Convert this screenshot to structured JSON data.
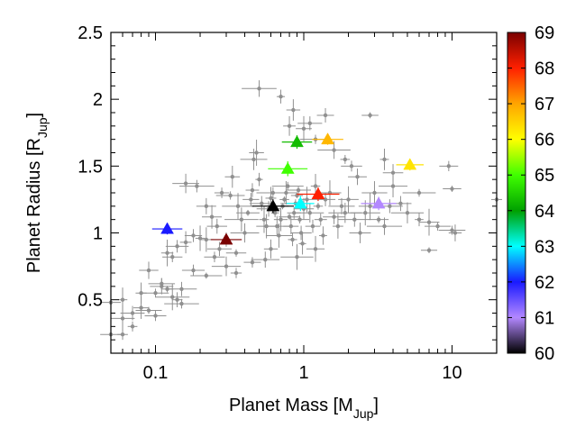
{
  "chart_data": {
    "type": "scatter",
    "title": "",
    "xlabel": {
      "main": "Planet Mass [M",
      "sub": "Jup",
      "close": "]"
    },
    "ylabel": {
      "main": "Planet Radius [R",
      "sub": "Jup",
      "close": "]"
    },
    "x_scale": "log",
    "xlim": [
      0.05,
      20
    ],
    "ylim": [
      0.1,
      2.5
    ],
    "x_ticks": [
      {
        "value": 0.1,
        "label": "0.1"
      },
      {
        "value": 1,
        "label": "1"
      },
      {
        "value": 10,
        "label": "10"
      }
    ],
    "y_ticks": [
      {
        "value": 0.5,
        "label": "0.5"
      },
      {
        "value": 1,
        "label": "1"
      },
      {
        "value": 1.5,
        "label": "1.5"
      },
      {
        "value": 2,
        "label": "2"
      },
      {
        "value": 2.5,
        "label": "2.5"
      }
    ],
    "grid": false,
    "colorbar": {
      "range": [
        60,
        69
      ],
      "ticks": [
        "60",
        "61",
        "62",
        "63",
        "64",
        "65",
        "66",
        "67",
        "68",
        "69"
      ],
      "stops": [
        {
          "value": 60,
          "color": "#000000"
        },
        {
          "value": 61,
          "color": "#b388ff"
        },
        {
          "value": 62,
          "color": "#1a1aff"
        },
        {
          "value": 63,
          "color": "#00ffff"
        },
        {
          "value": 64,
          "color": "#00a000"
        },
        {
          "value": 65,
          "color": "#40ff00"
        },
        {
          "value": 66,
          "color": "#ffff00"
        },
        {
          "value": 67,
          "color": "#ffa500"
        },
        {
          "value": 68,
          "color": "#ff2000"
        },
        {
          "value": 69,
          "color": "#7a0000"
        }
      ]
    },
    "series": [
      {
        "kind": "background",
        "color": "#909090",
        "points": [
          [
            0.05,
            0.24
          ],
          [
            0.06,
            0.24
          ],
          [
            0.05,
            0.48
          ],
          [
            0.06,
            0.5
          ],
          [
            0.07,
            0.4
          ],
          [
            0.08,
            0.44
          ],
          [
            0.09,
            0.42
          ],
          [
            0.1,
            0.38
          ],
          [
            0.1,
            0.55
          ],
          [
            0.11,
            0.6
          ],
          [
            0.12,
            0.58
          ],
          [
            0.13,
            0.52
          ],
          [
            0.14,
            0.5
          ],
          [
            0.15,
            0.47
          ],
          [
            0.09,
            0.72
          ],
          [
            0.11,
            0.62
          ],
          [
            0.12,
            0.85
          ],
          [
            0.13,
            0.82
          ],
          [
            0.14,
            0.9
          ],
          [
            0.16,
            0.93
          ],
          [
            0.18,
            0.98
          ],
          [
            0.2,
            0.96
          ],
          [
            0.22,
            0.95
          ],
          [
            0.25,
            0.82
          ],
          [
            0.27,
            0.88
          ],
          [
            0.3,
            0.75
          ],
          [
            0.35,
            0.7
          ],
          [
            0.35,
            0.85
          ],
          [
            0.3,
            0.95
          ],
          [
            0.16,
            1.37
          ],
          [
            0.19,
            1.35
          ],
          [
            0.22,
            1.2
          ],
          [
            0.24,
            1.12
          ],
          [
            0.26,
            1.05
          ],
          [
            0.28,
            1.3
          ],
          [
            0.32,
            1.28
          ],
          [
            0.33,
            1.42
          ],
          [
            0.36,
            1.2
          ],
          [
            0.38,
            1.1
          ],
          [
            0.4,
            1.0
          ],
          [
            0.42,
            1.15
          ],
          [
            0.44,
            1.25
          ],
          [
            0.45,
            1.32
          ],
          [
            0.46,
            1.55
          ],
          [
            0.48,
            1.6
          ],
          [
            0.5,
            1.4
          ],
          [
            0.52,
            1.22
          ],
          [
            0.54,
            1.1
          ],
          [
            0.56,
            1.05
          ],
          [
            0.58,
            1.18
          ],
          [
            0.6,
            1.26
          ],
          [
            0.62,
            1.3
          ],
          [
            0.64,
            1.15
          ],
          [
            0.66,
            1.05
          ],
          [
            0.68,
            0.98
          ],
          [
            0.7,
            1.1
          ],
          [
            0.72,
            1.2
          ],
          [
            0.74,
            1.25
          ],
          [
            0.76,
            1.3
          ],
          [
            0.78,
            1.35
          ],
          [
            0.8,
            1.12
          ],
          [
            0.82,
            1.05
          ],
          [
            0.84,
            0.95
          ],
          [
            0.86,
            1.15
          ],
          [
            0.88,
            1.22
          ],
          [
            0.9,
            1.28
          ],
          [
            0.92,
            1.32
          ],
          [
            0.94,
            1.1
          ],
          [
            0.96,
            1.0
          ],
          [
            0.98,
            0.92
          ],
          [
            1.0,
            1.18
          ],
          [
            1.05,
            1.25
          ],
          [
            1.1,
            1.15
          ],
          [
            1.15,
            1.05
          ],
          [
            1.2,
            1.35
          ],
          [
            1.25,
            1.2
          ],
          [
            1.3,
            1.1
          ],
          [
            1.35,
            0.98
          ],
          [
            1.4,
            1.25
          ],
          [
            1.5,
            1.3
          ],
          [
            1.6,
            1.12
          ],
          [
            1.7,
            1.05
          ],
          [
            1.8,
            1.2
          ],
          [
            1.9,
            1.15
          ],
          [
            2.0,
            1.25
          ],
          [
            2.2,
            1.1
          ],
          [
            2.4,
            1.0
          ],
          [
            2.6,
            1.15
          ],
          [
            2.8,
            1.2
          ],
          [
            3.0,
            1.3
          ],
          [
            3.2,
            1.1
          ],
          [
            3.5,
            1.05
          ],
          [
            3.8,
            1.2
          ],
          [
            4.0,
            1.35
          ],
          [
            4.5,
            1.22
          ],
          [
            5.0,
            1.15
          ],
          [
            6.0,
            1.1
          ],
          [
            7.0,
            1.08
          ],
          [
            8.0,
            1.05
          ],
          [
            10.0,
            1.02
          ],
          [
            10.5,
            1.0
          ],
          [
            7.0,
            0.87
          ],
          [
            0.5,
            2.08
          ],
          [
            0.7,
            2.02
          ],
          [
            0.8,
            1.8
          ],
          [
            0.85,
            1.92
          ],
          [
            1.0,
            1.78
          ],
          [
            1.1,
            1.82
          ],
          [
            1.2,
            1.7
          ],
          [
            1.4,
            1.88
          ],
          [
            1.6,
            1.62
          ],
          [
            1.9,
            1.55
          ],
          [
            2.1,
            1.5
          ],
          [
            2.3,
            1.42
          ],
          [
            2.8,
            1.88
          ],
          [
            3.5,
            1.55
          ],
          [
            4.0,
            1.45
          ],
          [
            6.0,
            1.3
          ],
          [
            9.5,
            1.5
          ],
          [
            10.0,
            1.33
          ],
          [
            20.0,
            1.25
          ],
          [
            0.22,
            0.68
          ],
          [
            0.18,
            0.72
          ],
          [
            0.45,
            0.78
          ],
          [
            0.55,
            0.8
          ],
          [
            0.6,
            0.88
          ],
          [
            0.9,
            0.82
          ],
          [
            1.2,
            0.88
          ],
          [
            0.15,
            0.58
          ],
          [
            0.07,
            0.3
          ],
          [
            0.08,
            0.55
          ],
          [
            0.06,
            0.36
          ]
        ]
      },
      {
        "kind": "highlighted",
        "points": [
          {
            "x": 0.12,
            "y": 1.03,
            "z": 62.0
          },
          {
            "x": 0.3,
            "y": 0.95,
            "z": 69.0
          },
          {
            "x": 0.62,
            "y": 1.2,
            "z": 60.0
          },
          {
            "x": 0.78,
            "y": 1.48,
            "z": 65.0
          },
          {
            "x": 0.9,
            "y": 1.68,
            "z": 64.3
          },
          {
            "x": 0.95,
            "y": 1.22,
            "z": 63.0
          },
          {
            "x": 1.25,
            "y": 1.29,
            "z": 68.0
          },
          {
            "x": 1.45,
            "y": 1.7,
            "z": 66.8
          },
          {
            "x": 3.2,
            "y": 1.22,
            "z": 61.0
          },
          {
            "x": 5.2,
            "y": 1.51,
            "z": 66.3
          }
        ]
      }
    ]
  }
}
